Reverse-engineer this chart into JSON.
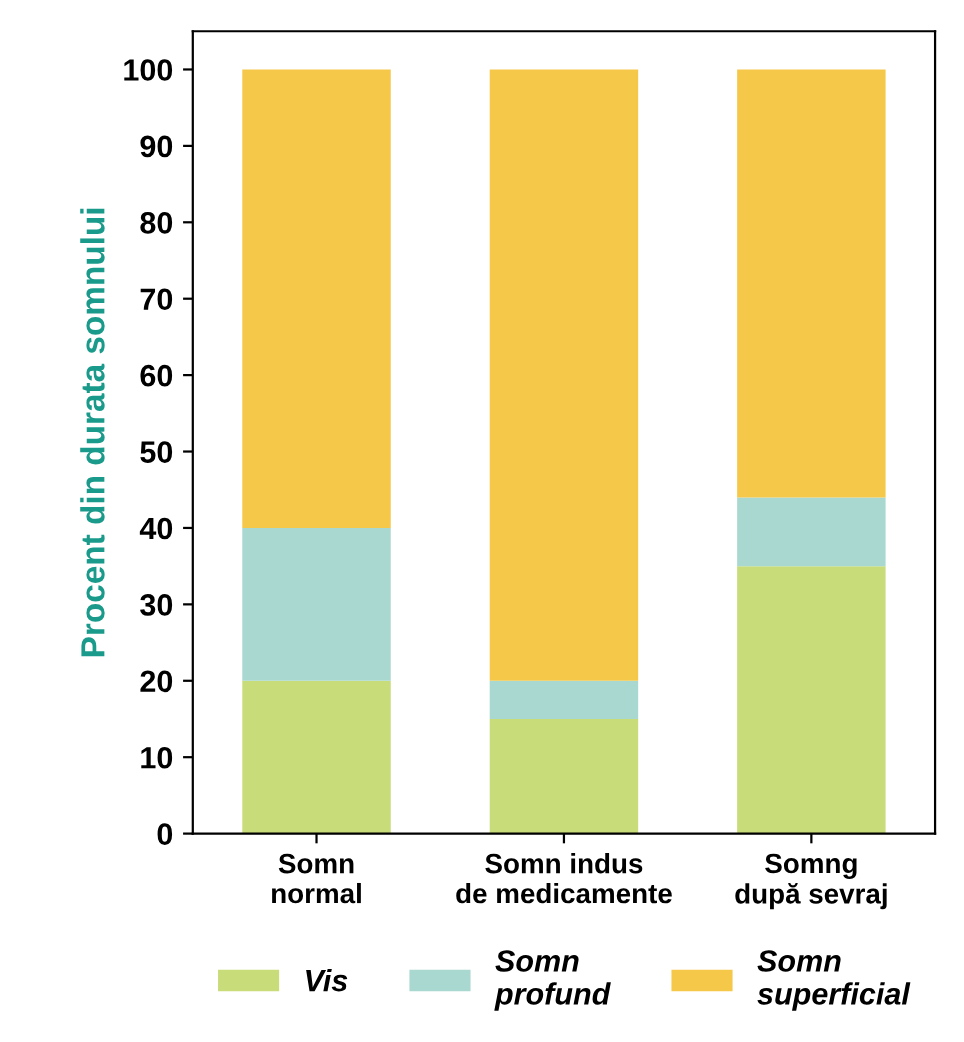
{
  "chart_data": {
    "type": "bar",
    "stacked": true,
    "ylabel": "Procent din durata somnului",
    "categories": [
      "Somn\nnormal",
      "Somn indus\nde medicamente",
      "Somng\ndupă sevraj"
    ],
    "series": [
      {
        "name": "Vis",
        "color": "#c8dc7a",
        "values": [
          20,
          15,
          35
        ]
      },
      {
        "name": "Somn\nprofund",
        "color": "#a8d8d0",
        "values": [
          20,
          5,
          9
        ]
      },
      {
        "name": "Somn\nsuperficial",
        "color": "#f5c84a",
        "values": [
          60,
          80,
          56
        ]
      }
    ],
    "ylim": [
      0,
      105
    ],
    "yticks": [
      0,
      10,
      20,
      30,
      40,
      50,
      60,
      70,
      80,
      90,
      100
    ],
    "grid": false,
    "legend": "bottom"
  }
}
